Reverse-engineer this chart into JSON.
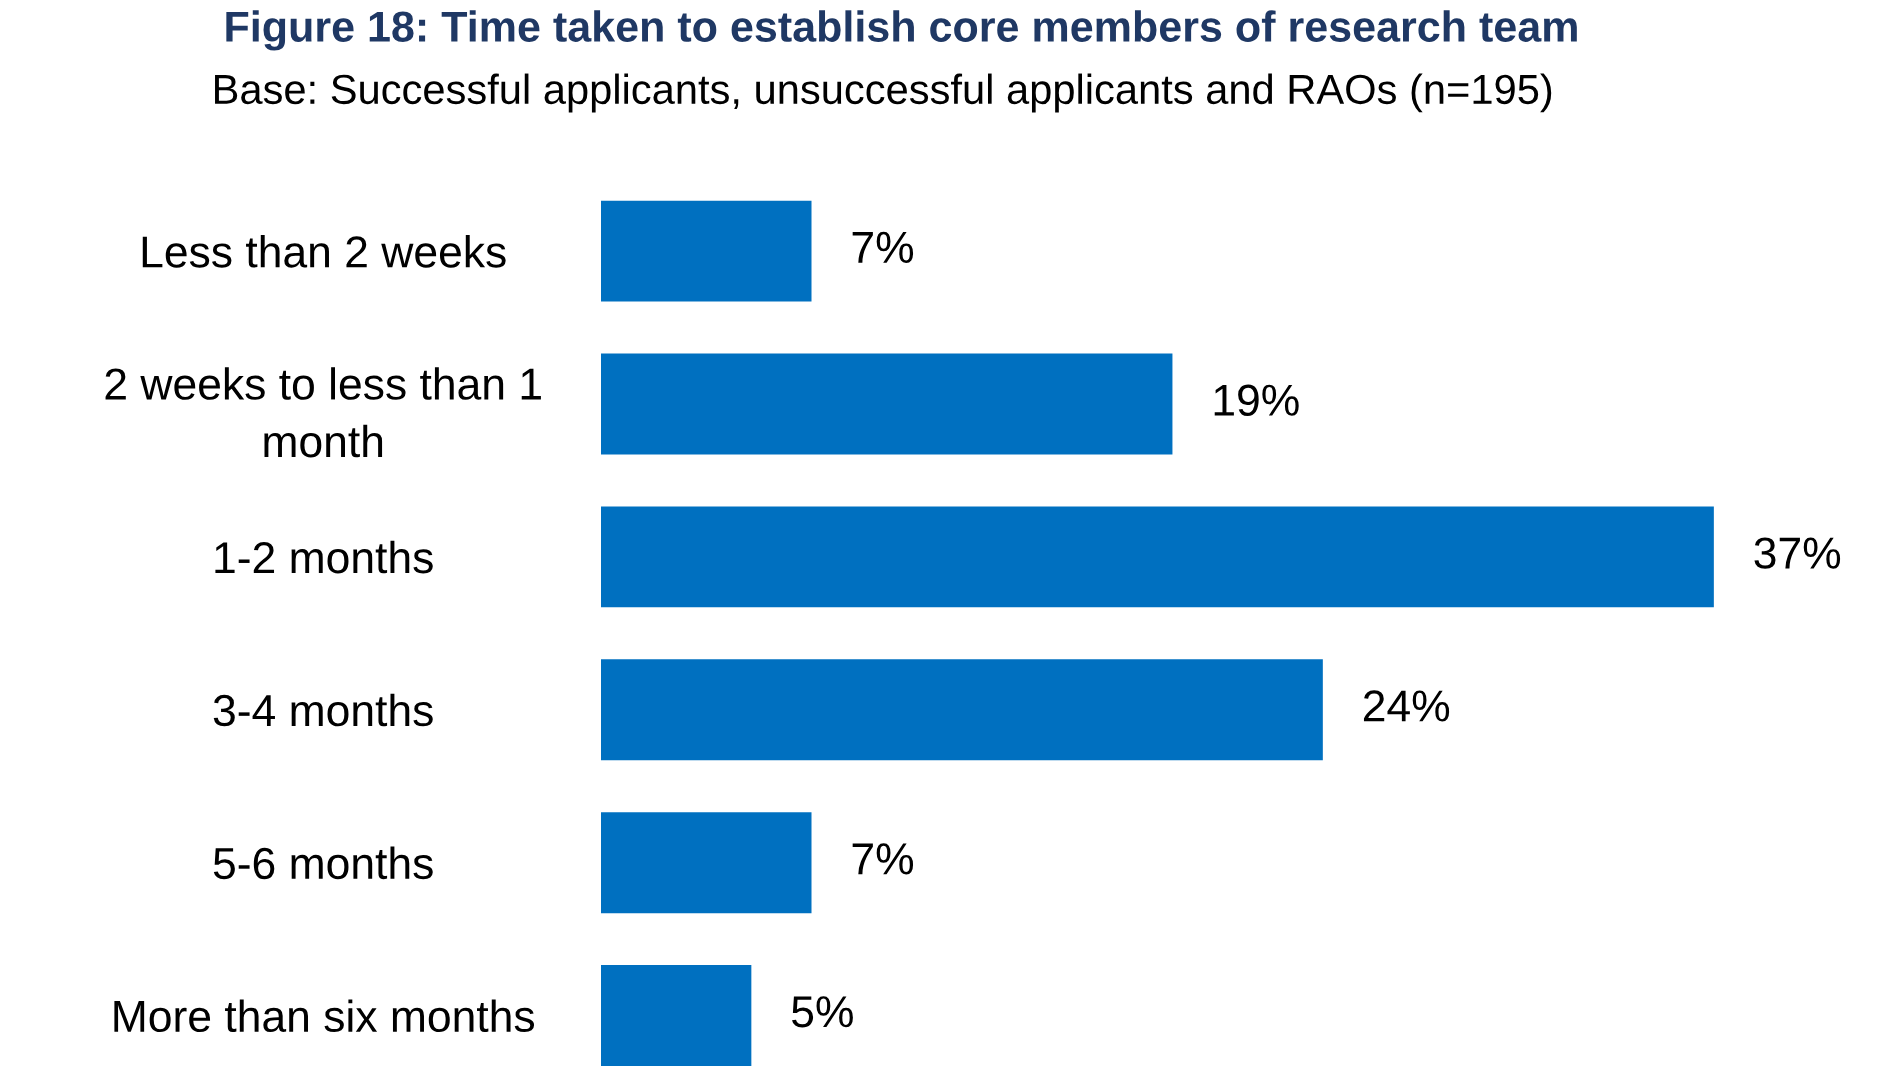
{
  "chart_data": {
    "type": "bar",
    "orientation": "horizontal",
    "value_labels": [
      "7%",
      "19%",
      "37%",
      "24%",
      "7%",
      "5%"
    ],
    "title": "Figure 18: Time taken to establish core members of research team",
    "subtitle": "Base: Successful applicants, unsuccessful applicants and RAOs (n=195)",
    "categories": [
      "Less than 2 weeks",
      "2 weeks to less than 1\nmonth",
      "1-2 months",
      "3-4 months",
      "5-6 months",
      "More than six months"
    ],
    "values": [
      7,
      19,
      37,
      24,
      7,
      5
    ],
    "color": "#0070c0",
    "grid": false,
    "legend": false
  }
}
